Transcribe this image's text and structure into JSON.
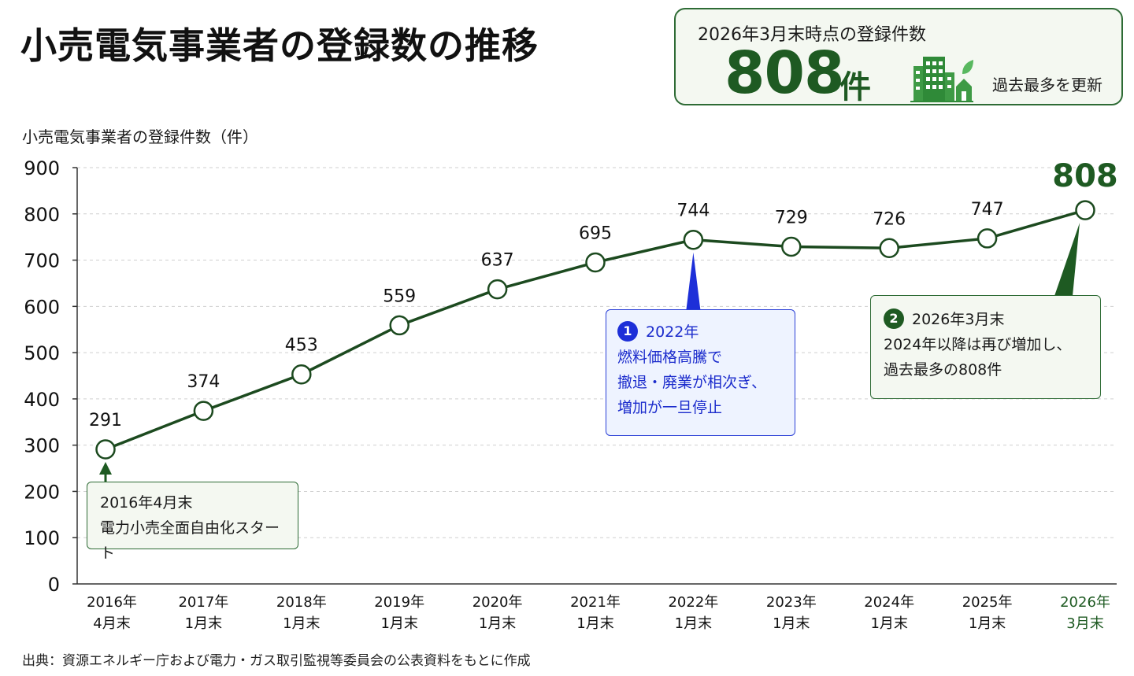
{
  "title": "小売電気事業者の登録数の推移",
  "summary": {
    "label": "2026年3月末時点の登録件数",
    "value": "808",
    "unit": "件",
    "note": "過去最多を更新",
    "icon": "building-icon"
  },
  "source": "出典：資源エネルギー庁および電力・ガス取引監視等委員会の公表資料をもとに作成",
  "colors": {
    "accent": "#1e5a22",
    "callout_blue": "#1d2fd8",
    "box_bg": "#f4f8f1"
  },
  "callouts": {
    "start": {
      "line1": "2016年4月末",
      "line2": "電力小売全面自由化スタート"
    },
    "c2022": {
      "number": "1",
      "heading": "2022年",
      "line1": "燃料価格高騰で",
      "line2": "撤退・廃業が相次ぎ、",
      "line3": "増加が一旦停止"
    },
    "c2026": {
      "number": "2",
      "heading": "2026年3月末",
      "line1": "2024年以降は再び増加し、",
      "line2": "過去最多の808件"
    }
  },
  "chart_data": {
    "type": "line",
    "ylabel": "小売電気事業者の登録件数（件）",
    "ylim": [
      0,
      900
    ],
    "yticks": [
      0,
      100,
      200,
      300,
      400,
      500,
      600,
      700,
      800,
      900
    ],
    "grid": true,
    "categories": [
      [
        "2016年",
        "4月末"
      ],
      [
        "2017年",
        "1月末"
      ],
      [
        "2018年",
        "1月末"
      ],
      [
        "2019年",
        "1月末"
      ],
      [
        "2020年",
        "1月末"
      ],
      [
        "2021年",
        "1月末"
      ],
      [
        "2022年",
        "1月末"
      ],
      [
        "2023年",
        "1月末"
      ],
      [
        "2024年",
        "1月末"
      ],
      [
        "2025年",
        "1月末"
      ],
      [
        "2026年",
        "3月末"
      ]
    ],
    "values": [
      291,
      374,
      453,
      559,
      637,
      695,
      744,
      729,
      726,
      747,
      808
    ]
  }
}
